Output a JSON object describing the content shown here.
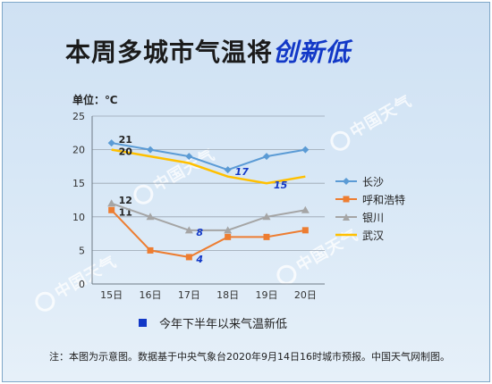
{
  "title_main": "本周多城市气温将",
  "title_highlight": "创新低",
  "unit_label": "单位：℃",
  "new_low_label": "今年下半年以来气温新低",
  "footer_note": "注：本图为示意图。数据基于中央气象台2020年9月14日16时城市预报。中国天气网制图。",
  "watermark": "中国天气",
  "colors": {
    "changsha": "#5b9bd5",
    "huhehaote": "#ed7d31",
    "yinchuan": "#a5a5a5",
    "wuhan": "#ffc000",
    "new_low": "#1238c7"
  },
  "chart_data": {
    "type": "line",
    "categories": [
      "15日",
      "16日",
      "17日",
      "18日",
      "19日",
      "20日"
    ],
    "ylim": [
      0,
      25
    ],
    "yticks": [
      "0",
      "5",
      "10",
      "15",
      "20",
      "25"
    ],
    "grid": true,
    "legend_position": "right",
    "series": [
      {
        "name": "长沙",
        "values": [
          21,
          20,
          19,
          17,
          19,
          20
        ],
        "marker": "diamond",
        "labels": [
          "21",
          "",
          "",
          "17",
          "",
          ""
        ],
        "new_low": [
          false,
          false,
          false,
          true,
          false,
          false
        ]
      },
      {
        "name": "呼和浩特",
        "values": [
          11,
          5,
          4,
          7,
          7,
          8
        ],
        "marker": "square",
        "labels": [
          "11",
          "",
          "4",
          "",
          "",
          ""
        ],
        "new_low": [
          false,
          false,
          true,
          false,
          false,
          false
        ]
      },
      {
        "name": "银川",
        "values": [
          12,
          10,
          8,
          8,
          10,
          11
        ],
        "marker": "triangle",
        "labels": [
          "12",
          "",
          "8",
          "",
          "",
          ""
        ],
        "new_low": [
          false,
          false,
          true,
          false,
          false,
          false
        ]
      },
      {
        "name": "武汉",
        "values": [
          20,
          19,
          18,
          16,
          15,
          16
        ],
        "marker": "none",
        "labels": [
          "20",
          "",
          "",
          "",
          "15",
          ""
        ],
        "new_low": [
          false,
          false,
          false,
          false,
          true,
          false
        ]
      }
    ]
  }
}
